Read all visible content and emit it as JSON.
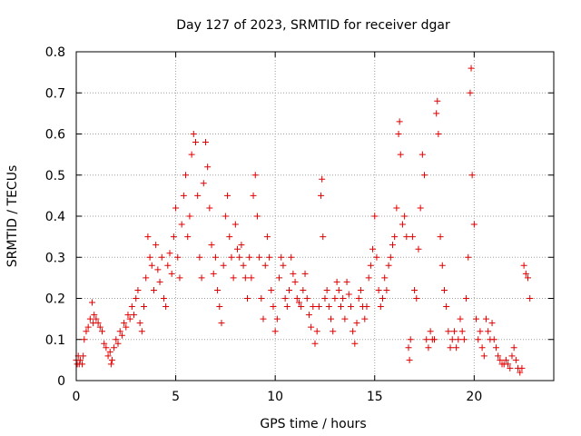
{
  "chart_data": {
    "type": "scatter",
    "title": "Day 127 of 2023, SRMTID for receiver dgar",
    "xlabel": "GPS time / hours",
    "ylabel": "SRMTID / TECUs",
    "xlim": [
      0,
      24
    ],
    "ylim": [
      0,
      0.8
    ],
    "xticks": [
      0,
      5,
      10,
      15,
      20
    ],
    "xtick_labels": [
      "0",
      "5",
      "10",
      "15",
      "20"
    ],
    "yticks": [
      0,
      0.1,
      0.2,
      0.3,
      0.4,
      0.5,
      0.6,
      0.7,
      0.8
    ],
    "ytick_labels": [
      "0",
      "0.1",
      "0.2",
      "0.3",
      "0.4",
      "0.5",
      "0.6",
      "0.7",
      "0.8"
    ],
    "grid": true,
    "marker": "plus",
    "color": "#e00000",
    "series": [
      {
        "name": "SRMTID",
        "points": [
          [
            0.0,
            0.05
          ],
          [
            0.05,
            0.04
          ],
          [
            0.1,
            0.06
          ],
          [
            0.15,
            0.04
          ],
          [
            0.2,
            0.05
          ],
          [
            0.3,
            0.04
          ],
          [
            0.35,
            0.06
          ],
          [
            0.4,
            0.1
          ],
          [
            0.5,
            0.12
          ],
          [
            0.6,
            0.13
          ],
          [
            0.7,
            0.15
          ],
          [
            0.8,
            0.19
          ],
          [
            0.85,
            0.14
          ],
          [
            0.9,
            0.16
          ],
          [
            1.0,
            0.15
          ],
          [
            1.1,
            0.14
          ],
          [
            1.2,
            0.13
          ],
          [
            1.3,
            0.12
          ],
          [
            1.4,
            0.09
          ],
          [
            1.5,
            0.08
          ],
          [
            1.6,
            0.06
          ],
          [
            1.7,
            0.07
          ],
          [
            1.75,
            0.04
          ],
          [
            1.8,
            0.05
          ],
          [
            1.9,
            0.08
          ],
          [
            2.0,
            0.1
          ],
          [
            2.1,
            0.09
          ],
          [
            2.2,
            0.12
          ],
          [
            2.3,
            0.11
          ],
          [
            2.4,
            0.14
          ],
          [
            2.5,
            0.13
          ],
          [
            2.6,
            0.16
          ],
          [
            2.7,
            0.15
          ],
          [
            2.8,
            0.18
          ],
          [
            2.9,
            0.16
          ],
          [
            3.0,
            0.2
          ],
          [
            3.1,
            0.22
          ],
          [
            3.2,
            0.14
          ],
          [
            3.3,
            0.12
          ],
          [
            3.4,
            0.18
          ],
          [
            3.5,
            0.25
          ],
          [
            3.6,
            0.35
          ],
          [
            3.7,
            0.3
          ],
          [
            3.8,
            0.28
          ],
          [
            3.9,
            0.22
          ],
          [
            4.0,
            0.33
          ],
          [
            4.1,
            0.27
          ],
          [
            4.2,
            0.24
          ],
          [
            4.3,
            0.3
          ],
          [
            4.4,
            0.2
          ],
          [
            4.5,
            0.18
          ],
          [
            4.6,
            0.28
          ],
          [
            4.7,
            0.31
          ],
          [
            4.8,
            0.26
          ],
          [
            4.9,
            0.35
          ],
          [
            5.0,
            0.42
          ],
          [
            5.1,
            0.3
          ],
          [
            5.2,
            0.25
          ],
          [
            5.3,
            0.38
          ],
          [
            5.4,
            0.45
          ],
          [
            5.5,
            0.5
          ],
          [
            5.6,
            0.35
          ],
          [
            5.7,
            0.4
          ],
          [
            5.8,
            0.55
          ],
          [
            5.9,
            0.6
          ],
          [
            6.0,
            0.58
          ],
          [
            6.1,
            0.45
          ],
          [
            6.2,
            0.3
          ],
          [
            6.3,
            0.25
          ],
          [
            6.4,
            0.48
          ],
          [
            6.5,
            0.58
          ],
          [
            6.6,
            0.52
          ],
          [
            6.7,
            0.42
          ],
          [
            6.8,
            0.33
          ],
          [
            6.9,
            0.26
          ],
          [
            7.0,
            0.3
          ],
          [
            7.1,
            0.22
          ],
          [
            7.2,
            0.18
          ],
          [
            7.3,
            0.14
          ],
          [
            7.4,
            0.28
          ],
          [
            7.5,
            0.4
          ],
          [
            7.6,
            0.45
          ],
          [
            7.7,
            0.35
          ],
          [
            7.8,
            0.3
          ],
          [
            7.9,
            0.25
          ],
          [
            8.0,
            0.38
          ],
          [
            8.1,
            0.32
          ],
          [
            8.2,
            0.3
          ],
          [
            8.3,
            0.33
          ],
          [
            8.4,
            0.28
          ],
          [
            8.5,
            0.25
          ],
          [
            8.6,
            0.2
          ],
          [
            8.7,
            0.3
          ],
          [
            8.8,
            0.25
          ],
          [
            8.9,
            0.45
          ],
          [
            9.0,
            0.5
          ],
          [
            9.1,
            0.4
          ],
          [
            9.2,
            0.3
          ],
          [
            9.3,
            0.2
          ],
          [
            9.4,
            0.15
          ],
          [
            9.5,
            0.28
          ],
          [
            9.6,
            0.35
          ],
          [
            9.7,
            0.3
          ],
          [
            9.8,
            0.22
          ],
          [
            9.9,
            0.18
          ],
          [
            10.0,
            0.12
          ],
          [
            10.1,
            0.15
          ],
          [
            10.2,
            0.25
          ],
          [
            10.3,
            0.3
          ],
          [
            10.4,
            0.28
          ],
          [
            10.5,
            0.2
          ],
          [
            10.6,
            0.18
          ],
          [
            10.7,
            0.22
          ],
          [
            10.8,
            0.3
          ],
          [
            10.9,
            0.26
          ],
          [
            11.0,
            0.24
          ],
          [
            11.1,
            0.2
          ],
          [
            11.2,
            0.19
          ],
          [
            11.3,
            0.18
          ],
          [
            11.4,
            0.22
          ],
          [
            11.5,
            0.26
          ],
          [
            11.6,
            0.2
          ],
          [
            11.7,
            0.16
          ],
          [
            11.8,
            0.13
          ],
          [
            11.9,
            0.18
          ],
          [
            12.0,
            0.09
          ],
          [
            12.1,
            0.12
          ],
          [
            12.2,
            0.18
          ],
          [
            12.3,
            0.45
          ],
          [
            12.35,
            0.49
          ],
          [
            12.4,
            0.35
          ],
          [
            12.5,
            0.2
          ],
          [
            12.6,
            0.22
          ],
          [
            12.7,
            0.18
          ],
          [
            12.8,
            0.15
          ],
          [
            12.9,
            0.12
          ],
          [
            13.0,
            0.2
          ],
          [
            13.1,
            0.24
          ],
          [
            13.2,
            0.22
          ],
          [
            13.3,
            0.18
          ],
          [
            13.4,
            0.2
          ],
          [
            13.5,
            0.15
          ],
          [
            13.6,
            0.24
          ],
          [
            13.7,
            0.21
          ],
          [
            13.8,
            0.18
          ],
          [
            13.9,
            0.12
          ],
          [
            14.0,
            0.09
          ],
          [
            14.1,
            0.14
          ],
          [
            14.2,
            0.2
          ],
          [
            14.3,
            0.22
          ],
          [
            14.4,
            0.18
          ],
          [
            14.5,
            0.15
          ],
          [
            14.6,
            0.18
          ],
          [
            14.7,
            0.25
          ],
          [
            14.8,
            0.28
          ],
          [
            14.9,
            0.32
          ],
          [
            15.0,
            0.4
          ],
          [
            15.1,
            0.3
          ],
          [
            15.2,
            0.22
          ],
          [
            15.3,
            0.18
          ],
          [
            15.4,
            0.2
          ],
          [
            15.5,
            0.25
          ],
          [
            15.6,
            0.22
          ],
          [
            15.7,
            0.28
          ],
          [
            15.8,
            0.3
          ],
          [
            15.9,
            0.33
          ],
          [
            16.0,
            0.35
          ],
          [
            16.1,
            0.42
          ],
          [
            16.2,
            0.6
          ],
          [
            16.25,
            0.63
          ],
          [
            16.3,
            0.55
          ],
          [
            16.4,
            0.38
          ],
          [
            16.5,
            0.4
          ],
          [
            16.6,
            0.35
          ],
          [
            16.7,
            0.08
          ],
          [
            16.75,
            0.05
          ],
          [
            16.8,
            0.1
          ],
          [
            16.9,
            0.35
          ],
          [
            17.0,
            0.22
          ],
          [
            17.1,
            0.2
          ],
          [
            17.2,
            0.32
          ],
          [
            17.3,
            0.42
          ],
          [
            17.4,
            0.55
          ],
          [
            17.5,
            0.5
          ],
          [
            17.6,
            0.1
          ],
          [
            17.7,
            0.08
          ],
          [
            17.8,
            0.12
          ],
          [
            17.9,
            0.1
          ],
          [
            18.0,
            0.1
          ],
          [
            18.1,
            0.65
          ],
          [
            18.15,
            0.68
          ],
          [
            18.2,
            0.6
          ],
          [
            18.3,
            0.35
          ],
          [
            18.4,
            0.28
          ],
          [
            18.5,
            0.22
          ],
          [
            18.6,
            0.18
          ],
          [
            18.7,
            0.12
          ],
          [
            18.8,
            0.08
          ],
          [
            18.9,
            0.1
          ],
          [
            19.0,
            0.12
          ],
          [
            19.1,
            0.08
          ],
          [
            19.2,
            0.1
          ],
          [
            19.3,
            0.15
          ],
          [
            19.4,
            0.12
          ],
          [
            19.5,
            0.1
          ],
          [
            19.6,
            0.2
          ],
          [
            19.7,
            0.3
          ],
          [
            19.8,
            0.7
          ],
          [
            19.85,
            0.76
          ],
          [
            19.9,
            0.5
          ],
          [
            20.0,
            0.38
          ],
          [
            20.1,
            0.15
          ],
          [
            20.2,
            0.1
          ],
          [
            20.3,
            0.12
          ],
          [
            20.4,
            0.08
          ],
          [
            20.5,
            0.06
          ],
          [
            20.6,
            0.15
          ],
          [
            20.7,
            0.12
          ],
          [
            20.8,
            0.1
          ],
          [
            20.9,
            0.14
          ],
          [
            21.0,
            0.1
          ],
          [
            21.1,
            0.08
          ],
          [
            21.2,
            0.06
          ],
          [
            21.3,
            0.05
          ],
          [
            21.4,
            0.04
          ],
          [
            21.5,
            0.04
          ],
          [
            21.6,
            0.05
          ],
          [
            21.7,
            0.04
          ],
          [
            21.8,
            0.03
          ],
          [
            21.9,
            0.06
          ],
          [
            22.0,
            0.08
          ],
          [
            22.1,
            0.05
          ],
          [
            22.2,
            0.03
          ],
          [
            22.3,
            0.02
          ],
          [
            22.4,
            0.03
          ],
          [
            22.5,
            0.28
          ],
          [
            22.6,
            0.26
          ],
          [
            22.7,
            0.25
          ],
          [
            22.8,
            0.2
          ]
        ]
      }
    ]
  }
}
